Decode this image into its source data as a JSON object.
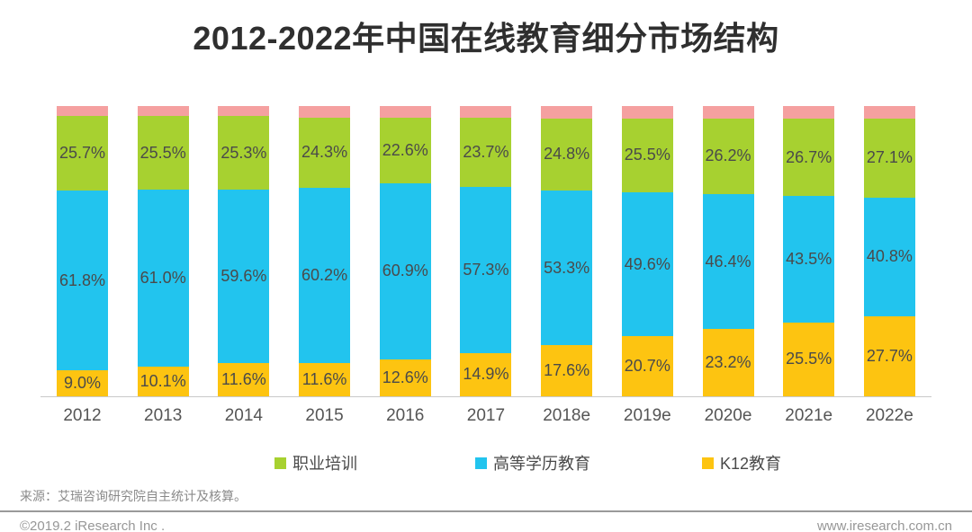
{
  "title": "2012-2022年中国在线教育细分市场结构",
  "chart_data": {
    "type": "bar",
    "stacked": true,
    "unit": "%",
    "ylim": [
      0,
      100
    ],
    "grid": false,
    "legend_position": "bottom",
    "categories": [
      "2012",
      "2013",
      "2014",
      "2015",
      "2016",
      "2017",
      "2018e",
      "2019e",
      "2020e",
      "2021e",
      "2022e"
    ],
    "series": [
      {
        "name": "职业培训",
        "color": "#a7d130",
        "labeled": true,
        "values": [
          25.7,
          25.5,
          25.3,
          24.3,
          22.6,
          23.7,
          24.8,
          25.5,
          26.2,
          26.7,
          27.1
        ]
      },
      {
        "name": "高等学历教育",
        "color": "#22c4ee",
        "labeled": true,
        "values": [
          61.8,
          61.0,
          59.6,
          60.2,
          60.9,
          57.3,
          53.3,
          49.6,
          46.4,
          43.5,
          40.8
        ]
      },
      {
        "name": "K12教育",
        "color": "#fdc411",
        "labeled": true,
        "values": [
          9.0,
          10.1,
          11.6,
          11.6,
          12.6,
          14.9,
          17.6,
          20.7,
          23.2,
          25.5,
          27.7
        ]
      },
      {
        "name": "",
        "color": "#f5a0a0",
        "labeled": false,
        "values": [
          3.5,
          3.4,
          3.5,
          3.9,
          3.9,
          4.1,
          4.3,
          4.2,
          4.2,
          4.3,
          4.4
        ]
      }
    ]
  },
  "legend": {
    "items": [
      {
        "label": "职业培训",
        "color": "#a7d130"
      },
      {
        "label": "高等学历教育",
        "color": "#22c4ee"
      },
      {
        "label": "K12教育",
        "color": "#fdc411"
      }
    ]
  },
  "footer": {
    "source": "来源：艾瑞咨询研究院自主统计及核算。",
    "copyright": "©2019.2 iResearch Inc .",
    "website": "www.iresearch.com.cn"
  }
}
